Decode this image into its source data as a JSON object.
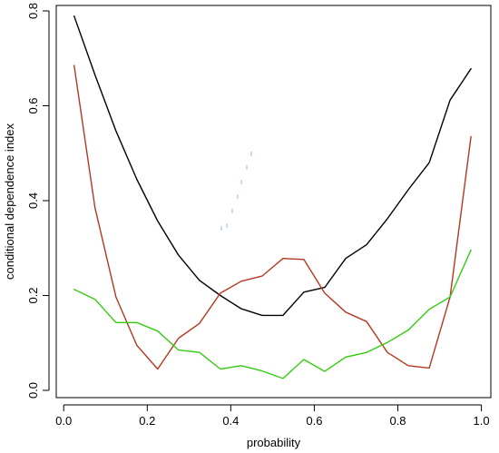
{
  "chart_data": {
    "type": "line",
    "title": "",
    "xlabel": "probability",
    "ylabel": "conditional dependence index",
    "xlim": [
      -0.01,
      1.0
    ],
    "ylim": [
      0.0,
      0.8
    ],
    "x_ticks": [
      0.0,
      0.2,
      0.4,
      0.6,
      0.8,
      1.0
    ],
    "x_tick_labels": [
      "0.0",
      "0.2",
      "0.4",
      "0.6",
      "0.8",
      "1.0"
    ],
    "y_ticks": [
      0.0,
      0.2,
      0.4,
      0.6,
      0.8
    ],
    "y_tick_labels": [
      "0.0",
      "0.2",
      "0.4",
      "0.6",
      "0.8"
    ],
    "grid": false,
    "legend": "none",
    "x": [
      0.025,
      0.075,
      0.125,
      0.175,
      0.225,
      0.275,
      0.325,
      0.375,
      0.425,
      0.475,
      0.525,
      0.575,
      0.625,
      0.675,
      0.725,
      0.775,
      0.825,
      0.875,
      0.925,
      0.975
    ],
    "series": [
      {
        "color": "#000000",
        "values": [
          0.789,
          0.665,
          0.547,
          0.445,
          0.357,
          0.285,
          0.232,
          0.2,
          0.172,
          0.158,
          0.158,
          0.207,
          0.217,
          0.278,
          0.307,
          0.362,
          0.423,
          0.48,
          0.612,
          0.678
        ]
      },
      {
        "color": "#b5371e",
        "values": [
          0.685,
          0.385,
          0.197,
          0.095,
          0.045,
          0.11,
          0.141,
          0.205,
          0.23,
          0.241,
          0.278,
          0.276,
          0.205,
          0.165,
          0.145,
          0.08,
          0.052,
          0.047,
          0.197,
          0.535
        ]
      },
      {
        "color": "#33cc11",
        "values": [
          0.213,
          0.192,
          0.143,
          0.143,
          0.125,
          0.085,
          0.08,
          0.045,
          0.052,
          0.041,
          0.025,
          0.065,
          0.04,
          0.07,
          0.08,
          0.101,
          0.127,
          0.171,
          0.197,
          0.296
        ]
      }
    ]
  }
}
